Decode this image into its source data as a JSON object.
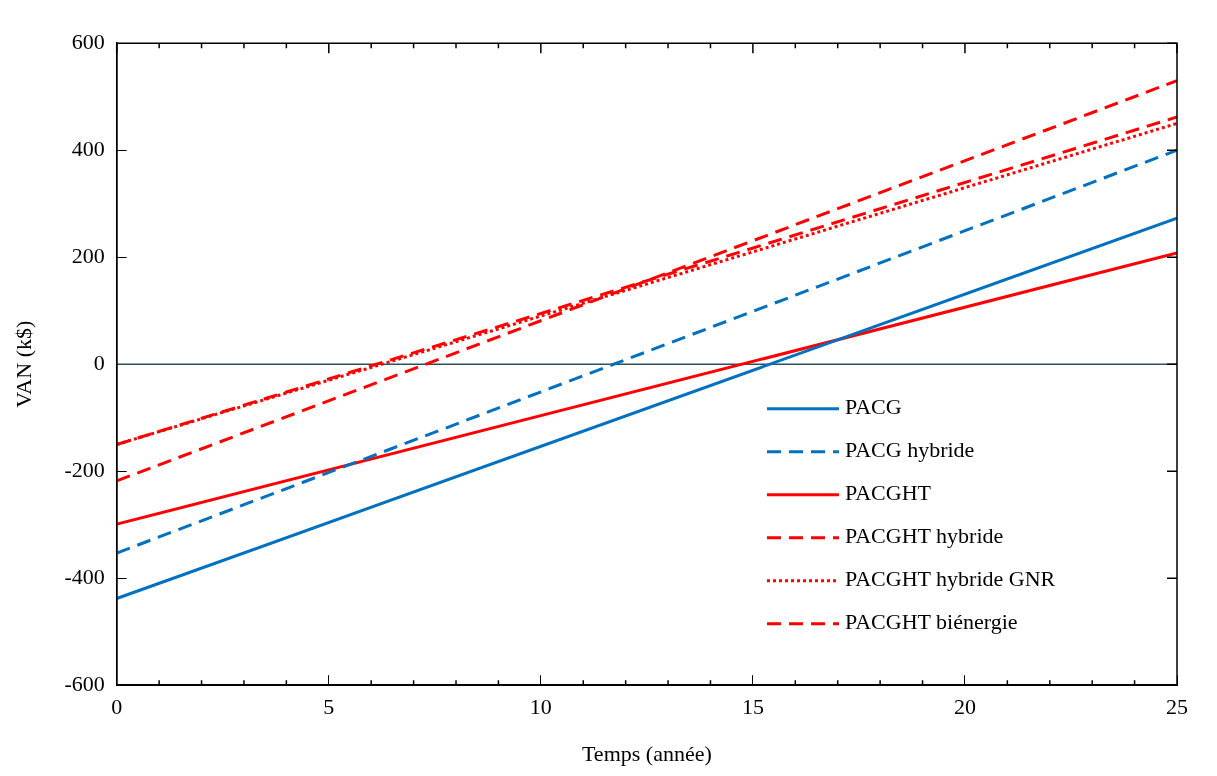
{
  "chart_data": {
    "type": "line",
    "xlabel": "Temps (année)",
    "ylabel": "VAN (k$)",
    "xlim": [
      0,
      25
    ],
    "xticks": [
      0,
      5,
      10,
      15,
      20,
      25
    ],
    "ylim": [
      -600,
      600
    ],
    "yticks": [
      -600,
      -400,
      -200,
      0,
      200,
      400,
      600
    ],
    "grid": false,
    "legend": "bottom right",
    "marker": "none",
    "ref_lines": [
      {
        "axis": "y",
        "value": 0,
        "color": "#2f4f5f"
      }
    ],
    "x": [
      0,
      25
    ],
    "series": [
      {
        "name": "PACG",
        "color": "#0070c0",
        "line_style": "solid",
        "values": [
          -438,
          273
        ]
      },
      {
        "name": "PACG hybride",
        "color": "#0070c0",
        "line_style": "dashed",
        "values": [
          -353,
          400
        ]
      },
      {
        "name": "PACGHT",
        "color": "#ff0000",
        "line_style": "solid",
        "values": [
          -299,
          208
        ]
      },
      {
        "name": "PACGHT hybride",
        "color": "#ff0000",
        "line_style": "dashed",
        "values": [
          -150,
          462
        ]
      },
      {
        "name": "PACGHT hybride GNR",
        "color": "#ff0000",
        "line_style": "dotted",
        "values": [
          -150,
          450
        ]
      },
      {
        "name": "PACGHT biénergie",
        "color": "#ff0000",
        "line_style": "dashed",
        "values": [
          -218,
          530
        ]
      }
    ]
  }
}
